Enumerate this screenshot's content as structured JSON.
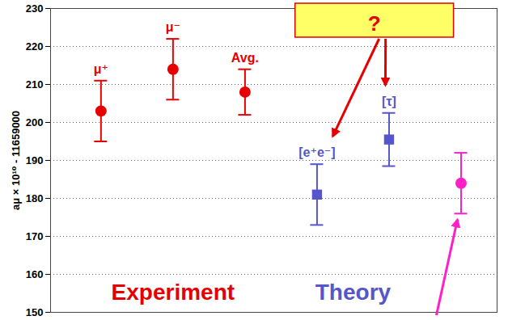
{
  "chart_data": {
    "type": "scatter",
    "ylabel": "aμ × 10¹⁰ - 11659000",
    "categories": [
      "μ⁺",
      "μ⁻",
      "Avg.",
      "[e⁺e⁻]",
      "[τ]",
      null
    ],
    "series": [
      {
        "name": "Experiment",
        "color": "#e60000",
        "marker": "circle",
        "values": [
          203,
          214,
          208,
          null,
          null,
          null
        ],
        "errors": [
          8,
          8,
          6,
          null,
          null,
          null
        ]
      },
      {
        "name": "Theory",
        "color": "#5555cc",
        "marker": "square",
        "values": [
          null,
          null,
          null,
          181,
          195.5,
          null
        ],
        "errors": [
          null,
          null,
          null,
          8,
          7,
          null
        ]
      },
      {
        "color": "#ff1fc8",
        "marker": "circle",
        "values": [
          null,
          null,
          null,
          null,
          null,
          184
        ],
        "errors": [
          null,
          null,
          null,
          null,
          null,
          8
        ]
      }
    ],
    "ylim": [
      150,
      230
    ],
    "yticks": [
      150,
      160,
      170,
      180,
      190,
      200,
      210,
      220,
      230
    ],
    "grid": true,
    "tick_labels": "y",
    "annotations": [
      {
        "text": "?"
      }
    ]
  }
}
